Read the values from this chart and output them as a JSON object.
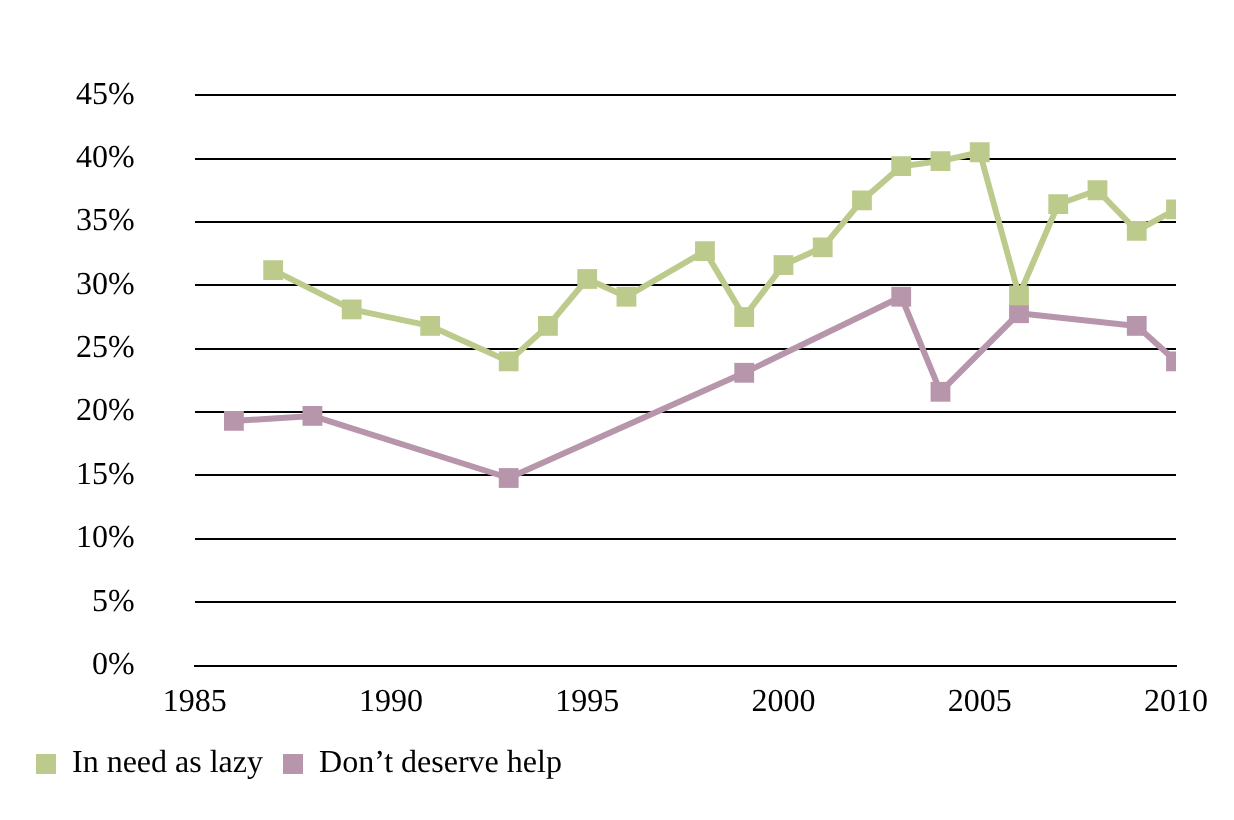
{
  "chart_data": {
    "type": "line",
    "xlim": [
      1985,
      2010
    ],
    "xticks": [
      1985,
      1990,
      1995,
      2000,
      2005,
      2010
    ],
    "ylim": [
      0,
      45
    ],
    "yticks": [
      {
        "value": 0,
        "label": "0%"
      },
      {
        "value": 5,
        "label": "5%"
      },
      {
        "value": 10,
        "label": "10%"
      },
      {
        "value": 15,
        "label": "15%"
      },
      {
        "value": 20,
        "label": "20%"
      },
      {
        "value": 25,
        "label": "25%"
      },
      {
        "value": 30,
        "label": "30%"
      },
      {
        "value": 35,
        "label": "35%"
      },
      {
        "value": 40,
        "label": "40%"
      },
      {
        "value": 45,
        "label": "45%"
      }
    ],
    "grid": "y",
    "legend": "bottom left",
    "marker": "square",
    "line_style": "solid",
    "series": [
      {
        "name": "In need as lazy",
        "color": "#bccb8c",
        "x": [
          1987,
          1989,
          1991,
          1993,
          1994,
          1995,
          1996,
          1998,
          1999,
          2000,
          2001,
          2002,
          2003,
          2004,
          2005,
          2006,
          2007,
          2008,
          2009,
          2010
        ],
        "values": [
          31.2,
          28.1,
          26.8,
          24.0,
          26.8,
          30.5,
          29.1,
          32.7,
          27.5,
          31.6,
          33.0,
          36.7,
          39.4,
          39.8,
          40.5,
          29.2,
          36.4,
          37.5,
          34.3,
          36.0
        ]
      },
      {
        "name": "Don’t deserve help",
        "color": "#b795aa",
        "x": [
          1986,
          1988,
          1993,
          1999,
          2003,
          2004,
          2006,
          2009,
          2010
        ],
        "values": [
          19.3,
          19.7,
          14.8,
          23.1,
          29.1,
          21.6,
          27.8,
          26.8,
          24.0
        ]
      }
    ]
  }
}
